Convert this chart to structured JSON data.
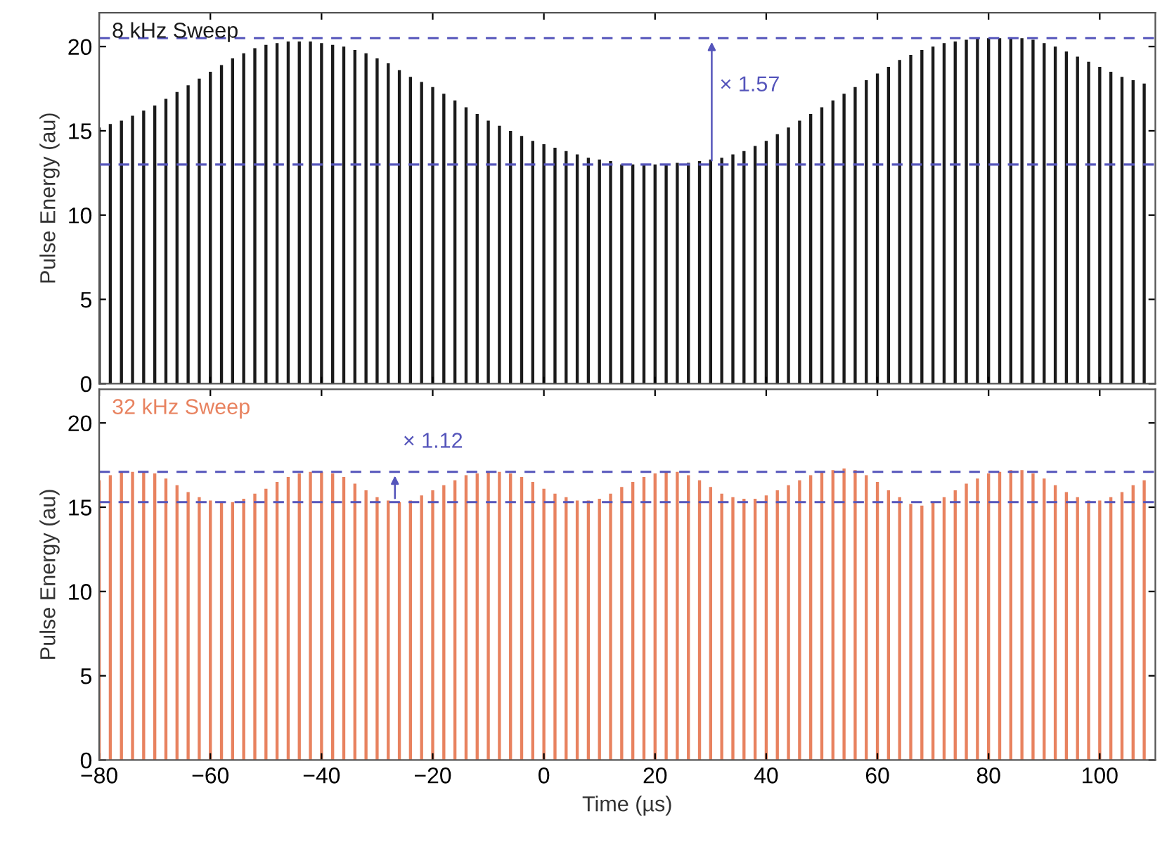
{
  "chart_data": [
    {
      "type": "bar",
      "title": "8 kHz Sweep",
      "ylabel": "Pulse Energy (au)",
      "color": "#1a1a1a",
      "xlim": [
        -80,
        110
      ],
      "xticks": [
        -80,
        -60,
        -40,
        -20,
        0,
        20,
        40,
        60,
        80,
        100
      ],
      "ylim": [
        0,
        22
      ],
      "yticks": [
        0,
        5,
        10,
        15,
        20
      ],
      "tick_labels": "y",
      "x": [
        -80,
        -78,
        -76,
        -74,
        -72,
        -70,
        -68,
        -66,
        -64,
        -62,
        -60,
        -58,
        -56,
        -54,
        -52,
        -50,
        -48,
        -46,
        -44,
        -42,
        -40,
        -38,
        -36,
        -34,
        -32,
        -30,
        -28,
        -26,
        -24,
        -22,
        -20,
        -18,
        -16,
        -14,
        -12,
        -10,
        -8,
        -6,
        -4,
        -2,
        0,
        2,
        4,
        6,
        8,
        10,
        12,
        14,
        16,
        18,
        20,
        22,
        24,
        26,
        28,
        30,
        32,
        34,
        36,
        38,
        40,
        42,
        44,
        46,
        48,
        50,
        52,
        54,
        56,
        58,
        60,
        62,
        64,
        66,
        68,
        70,
        72,
        74,
        76,
        78,
        80,
        82,
        84,
        86,
        88,
        90,
        92,
        94,
        96,
        98,
        100,
        102,
        104,
        106,
        108
      ],
      "values": [
        15.2,
        15.4,
        15.6,
        15.9,
        16.2,
        16.5,
        16.9,
        17.3,
        17.7,
        18.1,
        18.5,
        18.9,
        19.3,
        19.6,
        19.9,
        20.1,
        20.2,
        20.3,
        20.3,
        20.3,
        20.2,
        20.1,
        20.0,
        19.8,
        19.6,
        19.3,
        19.0,
        18.6,
        18.2,
        17.9,
        17.6,
        17.2,
        16.8,
        16.4,
        16.0,
        15.6,
        15.3,
        15.0,
        14.7,
        14.4,
        14.2,
        14.0,
        13.8,
        13.6,
        13.4,
        13.3,
        13.2,
        13.0,
        13.0,
        13.0,
        13.0,
        13.0,
        13.1,
        13.1,
        13.2,
        13.3,
        13.4,
        13.6,
        13.8,
        14.1,
        14.4,
        14.8,
        15.2,
        15.6,
        16.0,
        16.4,
        16.8,
        17.2,
        17.6,
        18.0,
        18.4,
        18.8,
        19.2,
        19.5,
        19.8,
        20.0,
        20.2,
        20.3,
        20.4,
        20.5,
        20.5,
        20.5,
        20.5,
        20.5,
        20.4,
        20.2,
        20.0,
        19.7,
        19.4,
        19.1,
        18.8,
        18.5,
        18.2,
        18.0,
        17.8
      ],
      "ref_lines": [
        {
          "axis": "y",
          "value": 20.5,
          "label": null,
          "color": "#5555bb",
          "line_style": "dashed"
        },
        {
          "axis": "y",
          "value": 13,
          "label": null,
          "color": "#5555bb",
          "line_style": "dashed"
        }
      ],
      "annotations": [
        "× 1.57"
      ]
    },
    {
      "type": "bar",
      "title": "32 kHz Sweep",
      "ylabel": "Pulse Energy (au)",
      "xlabel": "Time (µs)",
      "color": "#e8825f",
      "xlim": [
        -80,
        110
      ],
      "xticks": [
        -80,
        -60,
        -40,
        -20,
        0,
        20,
        40,
        60,
        80,
        100
      ],
      "ylim": [
        0,
        22
      ],
      "yticks": [
        0,
        5,
        10,
        15,
        20
      ],
      "x": [
        -80,
        -78,
        -76,
        -74,
        -72,
        -70,
        -68,
        -66,
        -64,
        -62,
        -60,
        -58,
        -56,
        -54,
        -52,
        -50,
        -48,
        -46,
        -44,
        -42,
        -40,
        -38,
        -36,
        -34,
        -32,
        -30,
        -28,
        -26,
        -24,
        -22,
        -20,
        -18,
        -16,
        -14,
        -12,
        -10,
        -8,
        -6,
        -4,
        -2,
        0,
        2,
        4,
        6,
        8,
        10,
        12,
        14,
        16,
        18,
        20,
        22,
        24,
        26,
        28,
        30,
        32,
        34,
        36,
        38,
        40,
        42,
        44,
        46,
        48,
        50,
        52,
        54,
        56,
        58,
        60,
        62,
        64,
        66,
        68,
        70,
        72,
        74,
        76,
        78,
        80,
        82,
        84,
        86,
        88,
        90,
        92,
        94,
        96,
        98,
        100,
        102,
        104,
        106,
        108
      ],
      "values": [
        16.6,
        16.9,
        17.1,
        17.1,
        17.1,
        17.0,
        16.7,
        16.3,
        15.9,
        15.6,
        15.4,
        15.3,
        15.3,
        15.5,
        15.8,
        16.1,
        16.5,
        16.8,
        17.0,
        17.1,
        17.1,
        17.0,
        16.8,
        16.4,
        16.0,
        15.6,
        15.4,
        15.3,
        15.4,
        15.7,
        16.0,
        16.3,
        16.6,
        16.9,
        17.0,
        17.1,
        17.1,
        17.0,
        16.8,
        16.5,
        16.1,
        15.8,
        15.6,
        15.4,
        15.4,
        15.5,
        15.8,
        16.2,
        16.5,
        16.8,
        17.0,
        17.1,
        17.1,
        16.9,
        16.6,
        16.2,
        15.8,
        15.6,
        15.5,
        15.5,
        15.7,
        16.0,
        16.3,
        16.6,
        16.9,
        17.1,
        17.2,
        17.3,
        17.2,
        16.9,
        16.5,
        16.0,
        15.6,
        15.2,
        15.1,
        15.3,
        15.6,
        16.0,
        16.4,
        16.7,
        17.0,
        17.1,
        17.2,
        17.2,
        17.0,
        16.7,
        16.3,
        15.9,
        15.6,
        15.4,
        15.4,
        15.6,
        15.9,
        16.3,
        16.6
      ],
      "ref_lines": [
        {
          "axis": "y",
          "value": 17.1,
          "label": null,
          "color": "#5555bb",
          "line_style": "dashed"
        },
        {
          "axis": "y",
          "value": 15.3,
          "label": null,
          "color": "#5555bb",
          "line_style": "dashed"
        }
      ],
      "annotations": [
        "× 1.12"
      ]
    }
  ]
}
